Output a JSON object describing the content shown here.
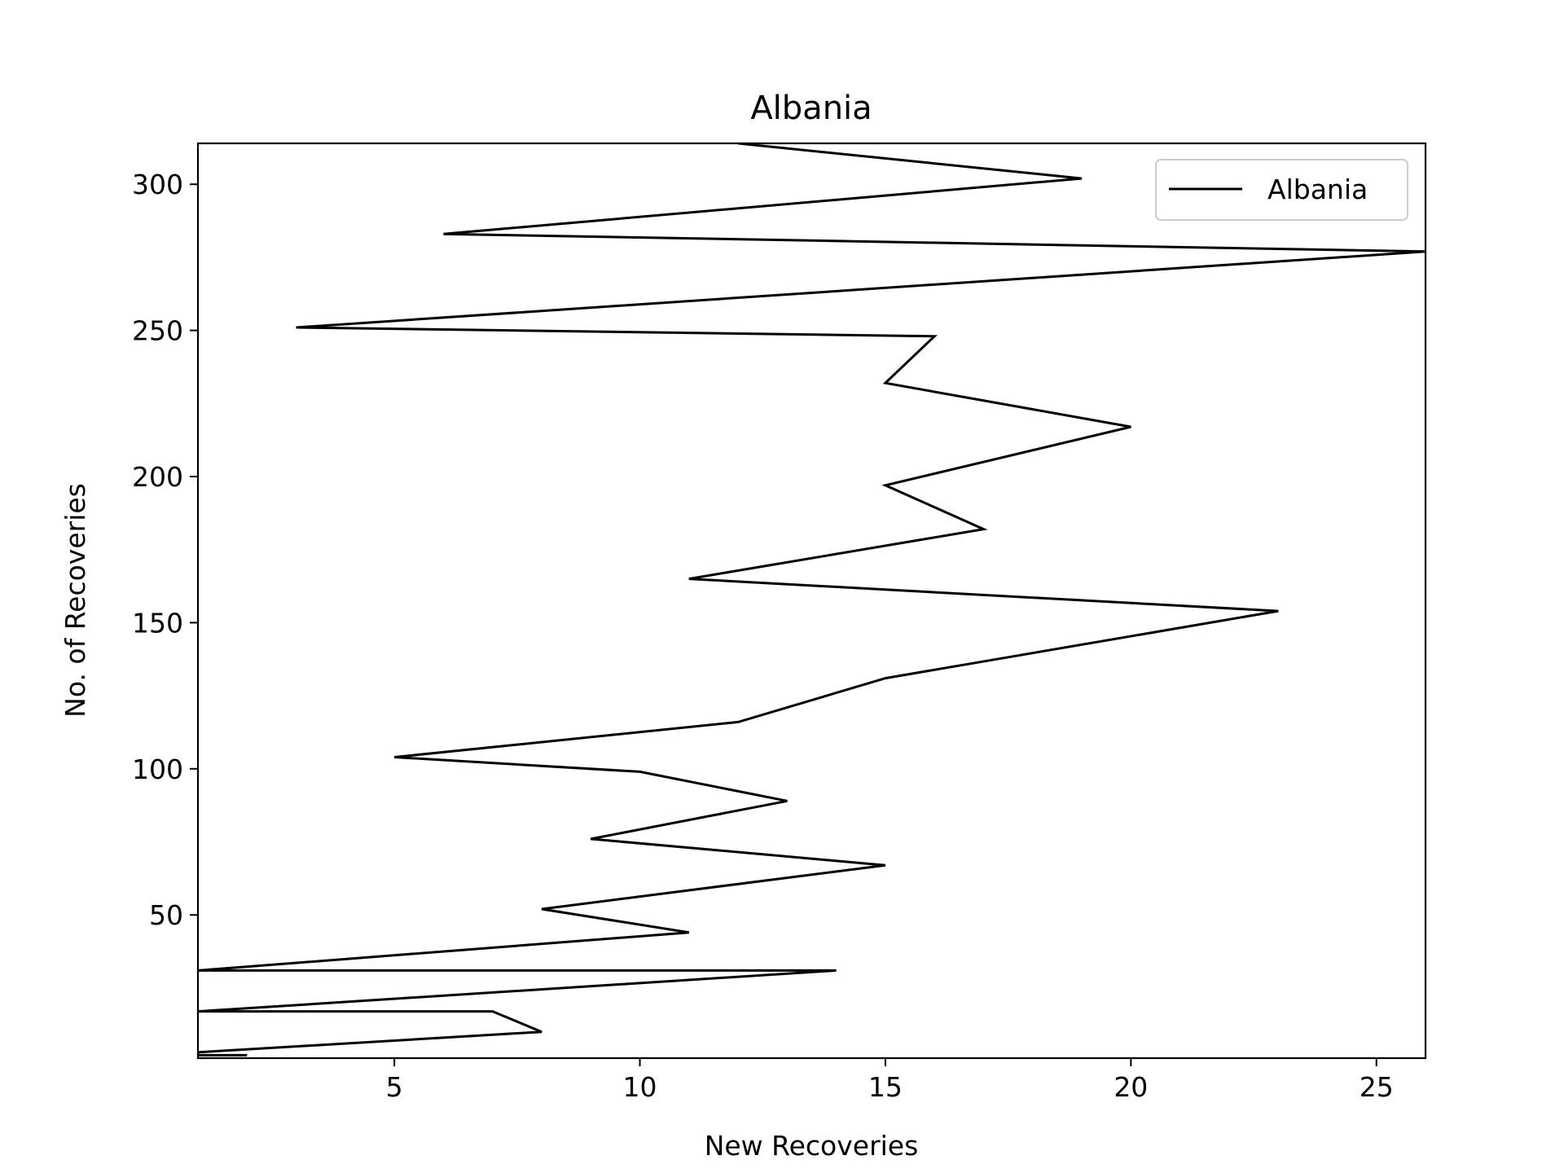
{
  "chart_data": {
    "type": "line",
    "title": "Albania",
    "xlabel": "New Recoveries",
    "ylabel": "No. of Recoveries",
    "xlim": [
      1,
      26
    ],
    "ylim": [
      1,
      314
    ],
    "grid": false,
    "legend_position": "top-right",
    "x_ticks": [
      5,
      10,
      15,
      20,
      25
    ],
    "y_ticks": [
      50,
      100,
      150,
      200,
      250,
      300
    ],
    "series": [
      {
        "name": "Albania",
        "color": "#000000",
        "points": [
          {
            "x": 2,
            "y": 2
          },
          {
            "x": 1,
            "y": 2
          },
          {
            "x": 1,
            "y": 3
          },
          {
            "x": 8,
            "y": 10
          },
          {
            "x": 7,
            "y": 17
          },
          {
            "x": 1,
            "y": 17
          },
          {
            "x": 14,
            "y": 31
          },
          {
            "x": 1,
            "y": 31
          },
          {
            "x": 11,
            "y": 44
          },
          {
            "x": 8,
            "y": 52
          },
          {
            "x": 15,
            "y": 67
          },
          {
            "x": 9,
            "y": 76
          },
          {
            "x": 13,
            "y": 89
          },
          {
            "x": 10,
            "y": 99
          },
          {
            "x": 5,
            "y": 104
          },
          {
            "x": 12,
            "y": 116
          },
          {
            "x": 15,
            "y": 131
          },
          {
            "x": 23,
            "y": 154
          },
          {
            "x": 11,
            "y": 165
          },
          {
            "x": 17,
            "y": 182
          },
          {
            "x": 15,
            "y": 197
          },
          {
            "x": 20,
            "y": 217
          },
          {
            "x": 15,
            "y": 232
          },
          {
            "x": 16,
            "y": 248
          },
          {
            "x": 3,
            "y": 251
          },
          {
            "x": 26,
            "y": 277
          },
          {
            "x": 6,
            "y": 283
          },
          {
            "x": 19,
            "y": 302
          },
          {
            "x": 12,
            "y": 314
          }
        ]
      }
    ]
  }
}
